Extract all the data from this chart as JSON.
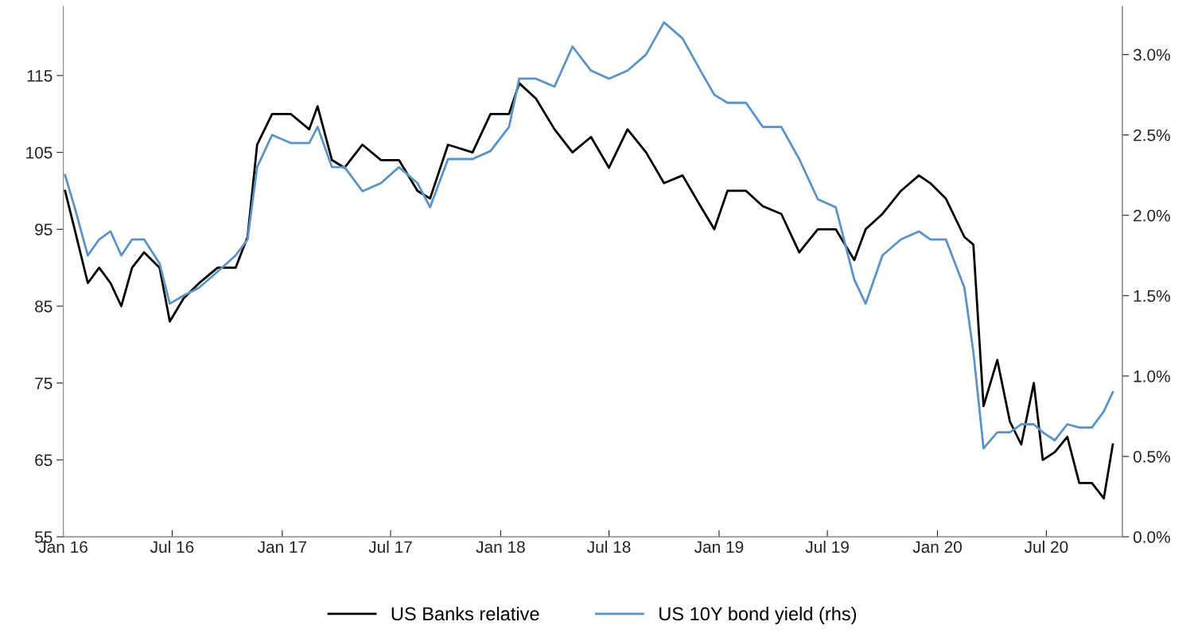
{
  "chart_data": {
    "type": "line",
    "legend": "bottom",
    "grid": false,
    "xlim": [
      "2016-01-01",
      "2020-11-05"
    ],
    "xticks": [
      {
        "value": "2016-01-01",
        "label": "Jan 16"
      },
      {
        "value": "2016-07-01",
        "label": "Jul 16"
      },
      {
        "value": "2017-01-01",
        "label": "Jan 17"
      },
      {
        "value": "2017-07-01",
        "label": "Jul 17"
      },
      {
        "value": "2018-01-01",
        "label": "Jan 18"
      },
      {
        "value": "2018-07-01",
        "label": "Jul 18"
      },
      {
        "value": "2019-01-01",
        "label": "Jan 19"
      },
      {
        "value": "2019-07-01",
        "label": "Jul 19"
      },
      {
        "value": "2020-01-01",
        "label": "Jan 20"
      },
      {
        "value": "2020-07-01",
        "label": "Jul 20"
      }
    ],
    "ylim": [
      55,
      124
    ],
    "yticks": [
      55,
      65,
      75,
      85,
      95,
      105,
      115
    ],
    "y2lim": [
      0,
      3.3
    ],
    "y2ticks": [
      {
        "value": 0,
        "label": "0.0%"
      },
      {
        "value": 0.5,
        "label": "0.5%"
      },
      {
        "value": 1,
        "label": "1.0%"
      },
      {
        "value": 1.5,
        "label": "1.5%"
      },
      {
        "value": 2,
        "label": "2.0%"
      },
      {
        "value": 2.5,
        "label": "2.5%"
      },
      {
        "value": 3,
        "label": "3.0%"
      }
    ],
    "x": [
      "2016-01-04",
      "2016-01-20",
      "2016-02-11",
      "2016-03-01",
      "2016-03-20",
      "2016-04-07",
      "2016-04-25",
      "2016-05-15",
      "2016-06-10",
      "2016-06-27",
      "2016-07-20",
      "2016-08-15",
      "2016-09-15",
      "2016-10-15",
      "2016-11-04",
      "2016-11-20",
      "2016-12-15",
      "2017-01-15",
      "2017-02-15",
      "2017-03-01",
      "2017-03-25",
      "2017-04-15",
      "2017-05-15",
      "2017-06-15",
      "2017-07-15",
      "2017-08-15",
      "2017-09-05",
      "2017-10-05",
      "2017-11-15",
      "2017-12-15",
      "2018-01-15",
      "2018-02-01",
      "2018-03-01",
      "2018-04-01",
      "2018-05-01",
      "2018-06-01",
      "2018-07-01",
      "2018-08-01",
      "2018-09-01",
      "2018-10-01",
      "2018-11-01",
      "2018-12-01",
      "2018-12-24",
      "2019-01-15",
      "2019-02-15",
      "2019-03-15",
      "2019-04-15",
      "2019-05-15",
      "2019-06-15",
      "2019-07-15",
      "2019-08-15",
      "2019-09-03",
      "2019-10-01",
      "2019-11-01",
      "2019-12-01",
      "2019-12-20",
      "2020-01-15",
      "2020-02-15",
      "2020-03-01",
      "2020-03-18",
      "2020-04-10",
      "2020-05-01",
      "2020-05-20",
      "2020-06-10",
      "2020-06-25",
      "2020-07-15",
      "2020-08-05",
      "2020-08-25",
      "2020-09-15",
      "2020-10-05",
      "2020-10-20"
    ],
    "series": [
      {
        "name": "US Banks relative",
        "color": "#000000",
        "values": [
          100,
          95,
          88,
          90,
          88,
          85,
          90,
          92,
          90,
          83,
          86,
          88,
          90,
          90,
          94,
          106,
          110,
          110,
          108,
          111,
          104,
          103,
          106,
          104,
          104,
          100,
          99,
          106,
          105,
          110,
          110,
          114,
          112,
          108,
          105,
          107,
          103,
          108,
          105,
          101,
          102,
          98,
          95,
          100,
          100,
          98,
          97,
          92,
          95,
          95,
          91,
          95,
          97,
          100,
          102,
          101,
          99,
          94,
          93,
          72,
          78,
          70,
          67,
          75,
          65,
          66,
          68,
          62,
          62,
          60,
          67
        ]
      },
      {
        "name": "US 10Y bond yield (rhs)",
        "color": "#5b93c7",
        "axis": "y2",
        "values": [
          2.25,
          2.05,
          1.75,
          1.85,
          1.9,
          1.75,
          1.85,
          1.85,
          1.7,
          1.45,
          1.5,
          1.55,
          1.65,
          1.75,
          1.85,
          2.3,
          2.5,
          2.45,
          2.45,
          2.55,
          2.3,
          2.3,
          2.15,
          2.2,
          2.3,
          2.2,
          2.05,
          2.35,
          2.35,
          2.4,
          2.55,
          2.85,
          2.85,
          2.8,
          3.05,
          2.9,
          2.85,
          2.9,
          3.0,
          3.2,
          3.1,
          2.9,
          2.75,
          2.7,
          2.7,
          2.55,
          2.55,
          2.35,
          2.1,
          2.05,
          1.6,
          1.45,
          1.75,
          1.85,
          1.9,
          1.85,
          1.85,
          1.55,
          1.15,
          0.55,
          0.65,
          0.65,
          0.7,
          0.7,
          0.65,
          0.6,
          0.7,
          0.68,
          0.68,
          0.78,
          0.9
        ]
      }
    ]
  }
}
